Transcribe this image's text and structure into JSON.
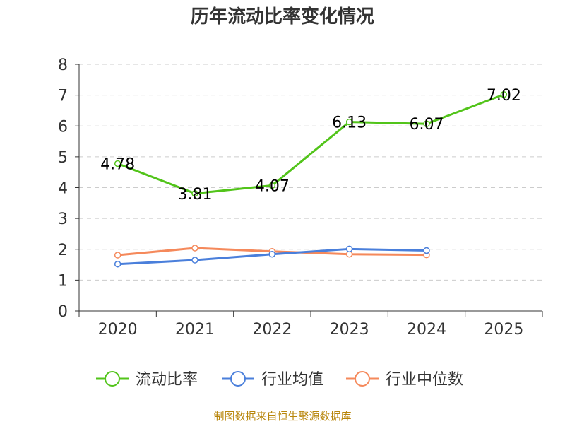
{
  "chart_data": {
    "type": "line",
    "title": "历年流动比率变化情况",
    "categories": [
      "2020",
      "2021",
      "2022",
      "2023",
      "2024",
      "2025"
    ],
    "ylim": [
      0,
      8
    ],
    "yticks": [
      0,
      1,
      2,
      3,
      4,
      5,
      6,
      7,
      8
    ],
    "grid": true,
    "legend_position": "bottom",
    "series": [
      {
        "name": "流动比率",
        "color": "#52c41a",
        "values": [
          4.78,
          3.81,
          4.07,
          6.13,
          6.07,
          7.02
        ],
        "labels": [
          "4.78",
          "3.81",
          "4.07",
          "6.13",
          "6.07",
          "7.02"
        ]
      },
      {
        "name": "行业均值",
        "color": "#4a7fdb",
        "values": [
          1.52,
          1.65,
          1.84,
          2.01,
          1.96,
          null
        ]
      },
      {
        "name": "行业中位数",
        "color": "#f5895b",
        "values": [
          1.81,
          2.04,
          1.93,
          1.84,
          1.82,
          null
        ]
      }
    ]
  },
  "source": "制图数据来自恒生聚源数据库"
}
